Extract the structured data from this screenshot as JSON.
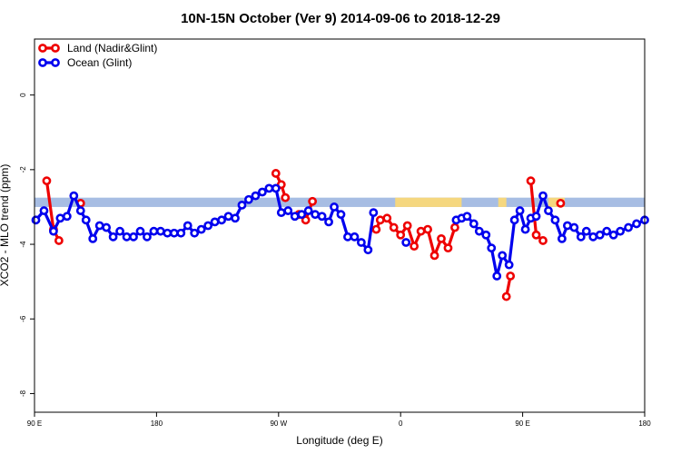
{
  "chart_data": {
    "type": "line",
    "title": "10N-15N October (Ver 9)   2014-09-06 to 2018-12-29",
    "xlabel": "Longitude (deg E)",
    "ylabel": "XCO2 - MLO trend (ppm)",
    "x_ticks": [
      {
        "value": 90,
        "label": "90 E"
      },
      {
        "value": 180,
        "label": "180"
      },
      {
        "value": 270,
        "label": "90 W"
      },
      {
        "value": 360,
        "label": "0"
      },
      {
        "value": 450,
        "label": "90 E"
      },
      {
        "value": 540,
        "label": "180"
      }
    ],
    "y_ticks": [
      {
        "value": 0,
        "label": "0"
      },
      {
        "value": -2,
        "label": "-2"
      },
      {
        "value": -4,
        "label": "-4"
      },
      {
        "value": -6,
        "label": "-6"
      },
      {
        "value": -8,
        "label": "-8"
      }
    ],
    "xlim": [
      90,
      540
    ],
    "ylim": [
      -8.5,
      1.5
    ],
    "band": {
      "ymin": -3.0,
      "ymax": -2.75,
      "color": "#a7bde3"
    },
    "land_regions": [
      {
        "x0": 356,
        "x1": 405,
        "color": "#f5d77f"
      },
      {
        "x0": 432,
        "x1": 438,
        "color": "#f5d77f"
      },
      {
        "x0": 469,
        "x1": 481,
        "color": "#f5d77f"
      }
    ],
    "legend": {
      "position": "top-left"
    },
    "series": [
      {
        "name": "Land (Nadir&Glint)",
        "color": "#ee0000",
        "segments": [
          [
            [
              99,
              -2.3
            ],
            [
              104,
              -3.6
            ],
            [
              108,
              -3.9
            ]
          ],
          [
            [
              124,
              -2.9
            ]
          ],
          [
            [
              268,
              -2.1
            ],
            [
              272,
              -2.4
            ],
            [
              275,
              -2.75
            ]
          ],
          [
            [
              285,
              -3.2
            ],
            [
              290,
              -3.35
            ],
            [
              295,
              -2.85
            ]
          ],
          [
            [
              342,
              -3.6
            ],
            [
              345,
              -3.35
            ],
            [
              350,
              -3.3
            ],
            [
              355,
              -3.55
            ],
            [
              360,
              -3.75
            ],
            [
              365,
              -3.5
            ],
            [
              370,
              -4.05
            ],
            [
              375,
              -3.65
            ],
            [
              380,
              -3.6
            ],
            [
              385,
              -4.3
            ],
            [
              390,
              -3.85
            ],
            [
              395,
              -4.1
            ],
            [
              400,
              -3.55
            ]
          ],
          [
            [
              438,
              -5.4
            ],
            [
              441,
              -4.85
            ]
          ],
          [
            [
              456,
              -2.3
            ],
            [
              460,
              -3.75
            ],
            [
              465,
              -3.9
            ]
          ],
          [
            [
              478,
              -2.9
            ]
          ]
        ]
      },
      {
        "name": "Ocean (Glint)",
        "color": "#0000ee",
        "segments": [
          [
            [
              91,
              -3.35
            ],
            [
              97,
              -3.1
            ],
            [
              104,
              -3.65
            ],
            [
              109,
              -3.3
            ],
            [
              114,
              -3.25
            ],
            [
              119,
              -2.7
            ],
            [
              124,
              -3.1
            ],
            [
              128,
              -3.35
            ],
            [
              133,
              -3.85
            ],
            [
              138,
              -3.5
            ],
            [
              143,
              -3.55
            ],
            [
              148,
              -3.8
            ],
            [
              153,
              -3.65
            ],
            [
              158,
              -3.8
            ],
            [
              163,
              -3.8
            ],
            [
              168,
              -3.65
            ],
            [
              173,
              -3.8
            ],
            [
              178,
              -3.65
            ],
            [
              183,
              -3.65
            ],
            [
              188,
              -3.7
            ],
            [
              193,
              -3.7
            ],
            [
              198,
              -3.7
            ],
            [
              203,
              -3.5
            ],
            [
              208,
              -3.7
            ],
            [
              213,
              -3.6
            ],
            [
              218,
              -3.5
            ],
            [
              223,
              -3.4
            ],
            [
              228,
              -3.35
            ],
            [
              233,
              -3.25
            ],
            [
              238,
              -3.3
            ],
            [
              243,
              -2.95
            ],
            [
              248,
              -2.8
            ],
            [
              253,
              -2.7
            ],
            [
              258,
              -2.6
            ],
            [
              263,
              -2.5
            ],
            [
              268,
              -2.5
            ],
            [
              272,
              -3.15
            ],
            [
              277,
              -3.1
            ],
            [
              282,
              -3.25
            ],
            [
              287,
              -3.2
            ],
            [
              292,
              -3.1
            ],
            [
              297,
              -3.2
            ],
            [
              302,
              -3.25
            ],
            [
              307,
              -3.4
            ],
            [
              311,
              -3.0
            ],
            [
              316,
              -3.2
            ],
            [
              321,
              -3.8
            ],
            [
              326,
              -3.8
            ],
            [
              331,
              -3.95
            ],
            [
              336,
              -4.15
            ],
            [
              340,
              -3.15
            ]
          ],
          [
            [
              364,
              -3.95
            ]
          ],
          [
            [
              401,
              -3.35
            ],
            [
              405,
              -3.3
            ],
            [
              409,
              -3.25
            ],
            [
              414,
              -3.45
            ],
            [
              418,
              -3.65
            ],
            [
              423,
              -3.75
            ],
            [
              427,
              -4.1
            ],
            [
              431,
              -4.85
            ],
            [
              435,
              -4.3
            ],
            [
              440,
              -4.55
            ],
            [
              444,
              -3.35
            ],
            [
              448,
              -3.1
            ],
            [
              452,
              -3.6
            ],
            [
              456,
              -3.3
            ],
            [
              460,
              -3.25
            ],
            [
              465,
              -2.7
            ],
            [
              469,
              -3.1
            ],
            [
              474,
              -3.35
            ],
            [
              479,
              -3.85
            ],
            [
              483,
              -3.5
            ],
            [
              488,
              -3.55
            ],
            [
              493,
              -3.8
            ],
            [
              497,
              -3.65
            ],
            [
              502,
              -3.8
            ],
            [
              507,
              -3.75
            ],
            [
              512,
              -3.65
            ],
            [
              517,
              -3.75
            ],
            [
              522,
              -3.65
            ],
            [
              528,
              -3.55
            ],
            [
              534,
              -3.45
            ],
            [
              540,
              -3.35
            ]
          ]
        ]
      }
    ]
  }
}
